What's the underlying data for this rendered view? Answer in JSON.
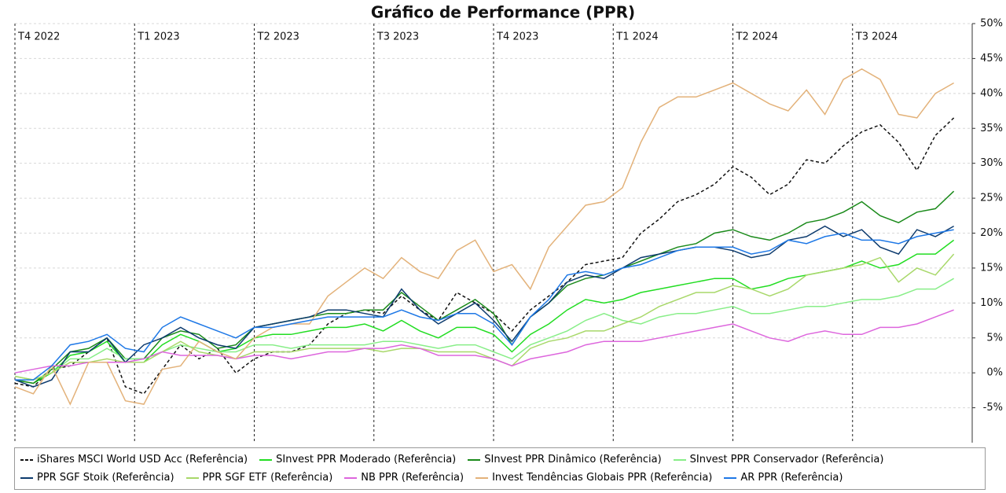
{
  "chart_data": {
    "type": "line",
    "title": "Gráfico de Performance (PPR)",
    "x": [
      0,
      2,
      4,
      6,
      8,
      10,
      12,
      14,
      16,
      18,
      20,
      22,
      24,
      26,
      28,
      30,
      32,
      34,
      36,
      38,
      40,
      42,
      44,
      46,
      48,
      50,
      52,
      54,
      56,
      58,
      60,
      62,
      64,
      66,
      68,
      70,
      72,
      74,
      76,
      78,
      80,
      82,
      84,
      86,
      88,
      90,
      92,
      94,
      96,
      98,
      100,
      102
    ],
    "xlim": [
      0,
      104
    ],
    "xticks": [
      {
        "value": 0,
        "label": "T4 2022"
      },
      {
        "value": 13,
        "label": "T1 2023"
      },
      {
        "value": 26,
        "label": "T2 2023"
      },
      {
        "value": 39,
        "label": "T3 2023"
      },
      {
        "value": 52,
        "label": "T4 2023"
      },
      {
        "value": 65,
        "label": "T1 2024"
      },
      {
        "value": 78,
        "label": "T2 2024"
      },
      {
        "value": 91,
        "label": "T3 2024"
      }
    ],
    "ylim": [
      -10,
      50
    ],
    "yticks": [
      {
        "value": -5,
        "label": "-5%"
      },
      {
        "value": 0,
        "label": "0%"
      },
      {
        "value": 5,
        "label": "5%"
      },
      {
        "value": 10,
        "label": "10%"
      },
      {
        "value": 15,
        "label": "15%"
      },
      {
        "value": 20,
        "label": "20%"
      },
      {
        "value": 25,
        "label": "25%"
      },
      {
        "value": 30,
        "label": "30%"
      },
      {
        "value": 35,
        "label": "35%"
      },
      {
        "value": 40,
        "label": "40%"
      },
      {
        "value": 45,
        "label": "45%"
      },
      {
        "value": 50,
        "label": "50%"
      }
    ],
    "grid": true,
    "series": [
      {
        "name": "iShares MSCI World USD Acc (Referência)",
        "color": "#111111",
        "linestyle": "dashed",
        "values": [
          -1.5,
          -2,
          0.5,
          1,
          3,
          5,
          -2,
          -3,
          0.5,
          4,
          2,
          3.5,
          0,
          2,
          3,
          3,
          4,
          7,
          8.5,
          9,
          8.5,
          11,
          9,
          7.5,
          11.5,
          10,
          8.5,
          6,
          9,
          11,
          13,
          15.5,
          16,
          16.5,
          20,
          22,
          24.5,
          25.5,
          27,
          29.5,
          28,
          25.5,
          27,
          30.5,
          30,
          32.5,
          34.5,
          35.5,
          33,
          29,
          34,
          36.5
        ]
      },
      {
        "name": "SInvest PPR Moderado (Referência)",
        "color": "#22dd22",
        "values": [
          -1,
          -1.5,
          0,
          2.5,
          3,
          4.5,
          1.5,
          1.5,
          4,
          5.5,
          4.5,
          3,
          3.5,
          5,
          5.5,
          5.5,
          6,
          6.5,
          6.5,
          7,
          6,
          7.5,
          6,
          5,
          6.5,
          6.5,
          5.5,
          3,
          5.5,
          7,
          9,
          10.5,
          10,
          10.5,
          11.5,
          12,
          12.5,
          13,
          13.5,
          13.5,
          12,
          12.5,
          13.5,
          14,
          14.5,
          15,
          16,
          15,
          15.5,
          17,
          17,
          19
        ]
      },
      {
        "name": "SInvest PPR Dinâmico (Referência)",
        "color": "#1a8a1a",
        "values": [
          -1,
          -1.5,
          0.5,
          3,
          3.5,
          5,
          2,
          2,
          5,
          6,
          5.5,
          3.5,
          4,
          6.5,
          7,
          7.5,
          8,
          8.5,
          8.5,
          9,
          9,
          11.5,
          9.5,
          7.5,
          9,
          10.5,
          8.5,
          4,
          8,
          10,
          12.5,
          13.5,
          14,
          15,
          16,
          17,
          18,
          18.5,
          20,
          20.5,
          19.5,
          19,
          20,
          21.5,
          22,
          23,
          24.5,
          22.5,
          21.5,
          23,
          23.5,
          26
        ]
      },
      {
        "name": "SInvest PPR Conservador (Referência)",
        "color": "#88ee88",
        "values": [
          -0.5,
          -1,
          0,
          2,
          2,
          3.5,
          2,
          2,
          3,
          4,
          3.5,
          3,
          3,
          4,
          4,
          3.5,
          4,
          4,
          4,
          4,
          4.5,
          4.5,
          4,
          3.5,
          4,
          4,
          3,
          2,
          4,
          5,
          6,
          7.5,
          8.5,
          7.5,
          7,
          8,
          8.5,
          8.5,
          9,
          9.5,
          8.5,
          8.5,
          9,
          9.5,
          9.5,
          10,
          10.5,
          10.5,
          11,
          12,
          12,
          13.5
        ]
      },
      {
        "name": "PPR SGF Stoik (Referência)",
        "color": "#0d3b6e",
        "values": [
          -1,
          -2,
          -1,
          3,
          3,
          5,
          1.5,
          4,
          5,
          6.5,
          5,
          4,
          3.5,
          6.5,
          7,
          7.5,
          8,
          9,
          9,
          8.5,
          8,
          12,
          9,
          7,
          8.5,
          10,
          7.5,
          4.5,
          8,
          10,
          13,
          14,
          13.5,
          15,
          16.5,
          17,
          17.5,
          18,
          18,
          17.5,
          16.5,
          17,
          19,
          19.5,
          21,
          19.5,
          20.5,
          18,
          17,
          20.5,
          19.5,
          21
        ]
      },
      {
        "name": "PPR SGF ETF (Referência)",
        "color": "#a8d86a",
        "values": [
          -0.5,
          -1,
          0,
          1.5,
          1.5,
          2,
          1.5,
          1.5,
          3,
          4.5,
          3,
          2.5,
          2,
          3,
          3,
          3,
          3.5,
          3.5,
          3.5,
          3.5,
          3,
          3.5,
          3.5,
          3,
          3,
          3,
          2,
          1,
          3.5,
          4.5,
          5,
          6,
          6,
          7,
          8,
          9.5,
          10.5,
          11.5,
          11.5,
          12.5,
          12,
          11,
          12,
          14,
          14.5,
          15,
          15.5,
          16.5,
          13,
          15,
          14,
          17
        ]
      },
      {
        "name": "NB PPR (Referência)",
        "color": "#dd66dd",
        "values": [
          0,
          0.5,
          1,
          1,
          1.5,
          1.5,
          1.5,
          2,
          3,
          2.5,
          2.5,
          2.5,
          2,
          2.5,
          2.5,
          2,
          2.5,
          3,
          3,
          3.5,
          3.5,
          4,
          3.5,
          2.5,
          2.5,
          2.5,
          2,
          1,
          2,
          2.5,
          3,
          4,
          4.5,
          4.5,
          4.5,
          5,
          5.5,
          6,
          6.5,
          7,
          6,
          5,
          4.5,
          5.5,
          6,
          5.5,
          5.5,
          6.5,
          6.5,
          7,
          8,
          9
        ]
      },
      {
        "name": "Invest Tendências Globais PPR (Referência)",
        "color": "#e3b27a",
        "values": [
          -2,
          -3,
          1,
          -4.5,
          1.5,
          1.5,
          -4,
          -4.5,
          0.5,
          1,
          4.5,
          3,
          2,
          5,
          6.5,
          7,
          7,
          11,
          13,
          15,
          13.5,
          16.5,
          14.5,
          13.5,
          17.5,
          19,
          14.5,
          15.5,
          12,
          18,
          21,
          24,
          24.5,
          26.5,
          33,
          38,
          39.5,
          39.5,
          40.5,
          41.5,
          40,
          38.5,
          37.5,
          40.5,
          37,
          42,
          43.5,
          42,
          37,
          36.5,
          40,
          41.5
        ]
      },
      {
        "name": "AR PPR (Referência)",
        "color": "#1e78e6",
        "values": [
          -1,
          -1,
          1,
          4,
          4.5,
          5.5,
          3.5,
          3,
          6.5,
          8,
          7,
          6,
          5,
          6.5,
          6.5,
          7,
          7.5,
          8,
          8,
          8,
          8,
          9,
          8,
          7.5,
          8.5,
          8.5,
          7,
          4,
          8,
          10.5,
          14,
          14.5,
          14,
          15,
          15.5,
          16.5,
          17.5,
          18,
          18,
          18,
          17,
          17.5,
          19,
          18.5,
          19.5,
          20,
          19,
          19,
          18.5,
          19.5,
          20,
          20.5
        ]
      }
    ]
  }
}
